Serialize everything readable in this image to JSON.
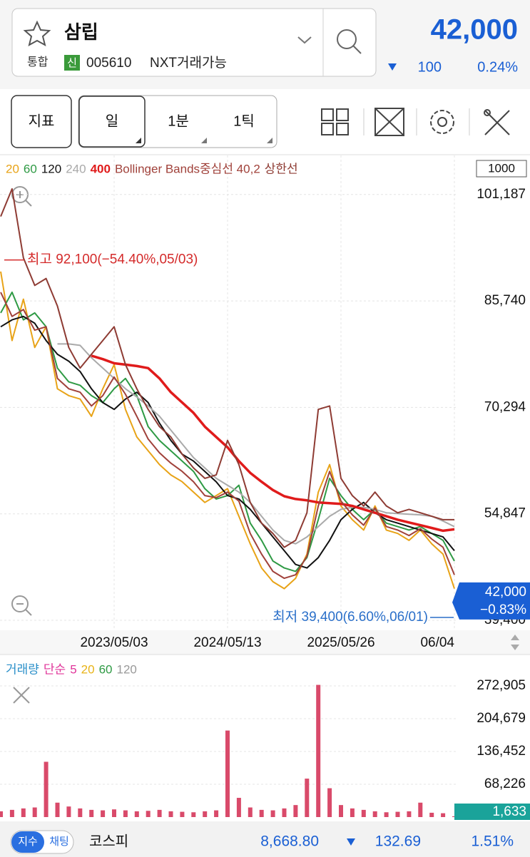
{
  "header": {
    "name": "삼립",
    "market": "통합",
    "badge": "신",
    "code": "005610",
    "tag": "NXT거래가능",
    "price": "42,000",
    "change": "100",
    "change_rate": "0.24%"
  },
  "toolbar": {
    "indicator": "지표",
    "periods": [
      "일",
      "1분",
      "1틱"
    ]
  },
  "chart_data": [
    {
      "type": "line",
      "count_box": "1000",
      "categories": [
        null,
        null,
        null,
        null,
        null,
        null,
        null,
        null,
        null,
        null,
        "2023/05/03",
        null,
        null,
        null,
        null,
        null,
        null,
        null,
        null,
        null,
        "2024/05/13",
        null,
        null,
        null,
        null,
        null,
        null,
        null,
        null,
        null,
        "2025/05/26",
        null,
        null,
        null,
        null,
        null,
        null,
        null,
        null,
        null,
        "06/04"
      ],
      "series": [
        {
          "name": "20",
          "color": "#e8a317",
          "values": [
            90000,
            80000,
            86000,
            79000,
            82000,
            73000,
            72000,
            71500,
            69000,
            73000,
            76500,
            70000,
            66000,
            64000,
            62000,
            60500,
            59500,
            58000,
            56500,
            57500,
            58500,
            54500,
            50500,
            47000,
            45000,
            44000,
            45500,
            49000,
            58000,
            62000,
            56000,
            54000,
            52500,
            56000,
            52500,
            52000,
            51000,
            52500,
            50500,
            49000,
            44000
          ]
        },
        {
          "name": "60",
          "color": "#2e9a44",
          "values": [
            84000,
            87000,
            83000,
            84000,
            82000,
            76000,
            74000,
            73500,
            72000,
            71000,
            73000,
            74500,
            72000,
            67500,
            65500,
            64000,
            62500,
            61000,
            58500,
            57000,
            57500,
            59000,
            53500,
            51000,
            48000,
            47000,
            46500,
            48500,
            54000,
            60000,
            57500,
            55500,
            54000,
            55500,
            53500,
            53000,
            52500,
            53000,
            52000,
            51000,
            48000
          ]
        },
        {
          "name": "120",
          "color": "#111111",
          "values": [
            82000,
            83000,
            83500,
            82500,
            80000,
            78000,
            77000,
            75500,
            73000,
            71000,
            70000,
            71500,
            72500,
            71000,
            68000,
            65500,
            63500,
            62500,
            61000,
            59500,
            57500,
            57000,
            55500,
            53500,
            51500,
            49500,
            47500,
            47000,
            48500,
            51000,
            54000,
            55500,
            56500,
            55000,
            54000,
            53500,
            53000,
            52500,
            52000,
            51500,
            49500
          ]
        },
        {
          "name": "240",
          "color": "#aaaaaa",
          "values": [
            null,
            null,
            null,
            null,
            null,
            79500,
            79500,
            79300,
            77500,
            76000,
            74500,
            73000,
            71800,
            70500,
            69000,
            67000,
            65000,
            63000,
            61500,
            60000,
            59000,
            58000,
            56500,
            54500,
            52500,
            51000,
            50500,
            51500,
            53000,
            54500,
            55500,
            55800,
            55800,
            55500,
            55000,
            54900,
            54800,
            54700,
            54500,
            53800,
            53000
          ]
        },
        {
          "name": "400",
          "color": "#e01b1b",
          "values": [
            null,
            null,
            null,
            null,
            null,
            null,
            null,
            null,
            77800,
            77300,
            76700,
            76500,
            76300,
            76000,
            74500,
            72500,
            71000,
            69500,
            67500,
            66000,
            64500,
            62500,
            60800,
            59500,
            58300,
            57400,
            57000,
            56800,
            56500,
            56400,
            56300,
            56000,
            55500,
            55000,
            54500,
            54000,
            53600,
            53200,
            52800,
            52400,
            52600
          ]
        },
        {
          "name": "Bollinger Bands중심선 40,2",
          "color": "#a0413a",
          "values": [
            87000,
            83500,
            84500,
            81500,
            82000,
            74500,
            73000,
            72500,
            70500,
            72000,
            74700,
            72200,
            69000,
            65700,
            63700,
            62200,
            61000,
            59500,
            57500,
            57200,
            58000,
            56700,
            52000,
            49000,
            46500,
            45500,
            46000,
            48700,
            56000,
            61000,
            56700,
            54700,
            53200,
            55700,
            53000,
            52500,
            51700,
            52700,
            51200,
            50000,
            46000
          ]
        },
        {
          "name": "상한선",
          "color": "#8e3b33",
          "values": [
            98000,
            102000,
            92000,
            88000,
            89000,
            85000,
            79000,
            76000,
            78000,
            80000,
            82000,
            76500,
            73000,
            70000,
            67500,
            66000,
            63500,
            61500,
            60000,
            60500,
            65500,
            62000,
            56500,
            53500,
            52000,
            50000,
            51000,
            55000,
            70000,
            70500,
            60000,
            57500,
            56000,
            58000,
            56000,
            55000,
            55500,
            55000,
            54500,
            54000,
            54000
          ]
        }
      ],
      "ylim": [
        38370,
        106130
      ],
      "yticks": [
        {
          "value": 101187,
          "label": "101,187"
        },
        {
          "value": 85740,
          "label": "85,740"
        },
        {
          "value": 70294,
          "label": "70,294"
        },
        {
          "value": 54847,
          "label": "54,847"
        },
        {
          "value": 39400,
          "label": "39,400"
        }
      ],
      "grid": true,
      "annotations": [
        {
          "text": "최고 92,100(−54.40%,05/03)",
          "value": 92100,
          "color": "#d42a2a",
          "side": "left"
        },
        {
          "text": "최저 39,400(6.60%,06/01)",
          "value": 39400,
          "color": "#2a6fc9",
          "side": "right"
        }
      ],
      "last_value": 42000,
      "last_label": "42,000",
      "last_rate": "−0.83%"
    },
    {
      "type": "bar",
      "color": "#d94a6a",
      "legend": [
        {
          "text": "거래량",
          "color": "#2a8fc9"
        },
        {
          "text": "단순",
          "color": "#e0349a"
        },
        {
          "text": "5",
          "color": "#e0349a"
        },
        {
          "text": "20",
          "color": "#e8b317"
        },
        {
          "text": "60",
          "color": "#2e9a44"
        },
        {
          "text": "120",
          "color": "#999999"
        }
      ],
      "values": [
        12000,
        15000,
        18000,
        20000,
        115000,
        30000,
        22000,
        18000,
        15000,
        14000,
        16000,
        14000,
        12000,
        13000,
        15000,
        12000,
        11000,
        10000,
        12000,
        14000,
        180000,
        40000,
        20000,
        15000,
        14000,
        18000,
        25000,
        80000,
        275000,
        60000,
        25000,
        18000,
        15000,
        12000,
        10000,
        11000,
        12000,
        30000,
        9000,
        8000,
        1633
      ],
      "ylim": [
        0,
        305500
      ],
      "yticks": [
        {
          "value": 272905,
          "label": "272,905"
        },
        {
          "value": 204679,
          "label": "204,679"
        },
        {
          "value": 136452,
          "label": "136,452"
        },
        {
          "value": 68226,
          "label": "68,226"
        }
      ],
      "grid": true,
      "last_label": "1,633"
    }
  ],
  "footer": {
    "chips": [
      "지수",
      "채팅"
    ],
    "index_name": "코스피",
    "index_value": "8,668.80",
    "index_change": "132.69",
    "index_rate": "1.51%"
  }
}
